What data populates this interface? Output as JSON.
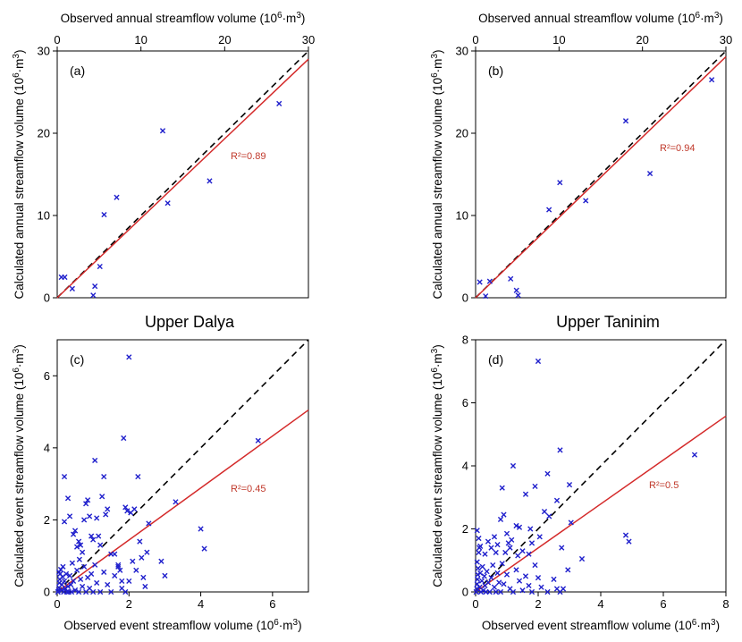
{
  "colors": {
    "marker": "#1f1fcc",
    "fit_line": "#d42a2a",
    "one_to_one": "#000000",
    "r2_text": "#c0392b"
  },
  "site_titles": [
    "Upper Dalya",
    "Upper Taninim"
  ],
  "chart_data": [
    {
      "type": "scatter",
      "panel_label": "(a)",
      "site": "Upper Dalya",
      "xlabel": "Observed annual streamflow volume (10^6·m^3)",
      "xlabel_position": "top",
      "ylabel": "Calculated annual streamflow volume (10^6·m^3)",
      "xlim": [
        0,
        30
      ],
      "ylim": [
        0,
        30
      ],
      "xticks": [
        0,
        10,
        20,
        30
      ],
      "yticks": [
        0,
        10,
        20,
        30
      ],
      "r2_text": "R²=0.89",
      "fit_line": {
        "x": [
          0,
          30
        ],
        "y": [
          0,
          29.0
        ]
      },
      "one_to_one": true,
      "points": [
        [
          0.5,
          2.5
        ],
        [
          0.9,
          2.5
        ],
        [
          1.8,
          1.1
        ],
        [
          4.3,
          0.3
        ],
        [
          4.5,
          1.4
        ],
        [
          5.1,
          3.8
        ],
        [
          5.6,
          10.1
        ],
        [
          7.1,
          12.2
        ],
        [
          12.6,
          20.3
        ],
        [
          13.2,
          11.5
        ],
        [
          18.2,
          14.2
        ],
        [
          26.5,
          23.6
        ]
      ]
    },
    {
      "type": "scatter",
      "panel_label": "(b)",
      "site": "Upper Taninim",
      "xlabel": "Observed annual streamflow volume (10^6·m^3)",
      "xlabel_position": "top",
      "ylabel": "Calculated annual streamflow volume (10^6·m^3)",
      "xlim": [
        0,
        30
      ],
      "ylim": [
        0,
        30
      ],
      "xticks": [
        0,
        10,
        20,
        30
      ],
      "yticks": [
        0,
        10,
        20,
        30
      ],
      "r2_text": "R²=0.94",
      "fit_line": {
        "x": [
          0,
          30
        ],
        "y": [
          0,
          29.3
        ]
      },
      "one_to_one": true,
      "points": [
        [
          0.5,
          1.9
        ],
        [
          1.2,
          0.2
        ],
        [
          1.7,
          2.0
        ],
        [
          4.2,
          2.3
        ],
        [
          4.9,
          0.9
        ],
        [
          5.1,
          0.3
        ],
        [
          8.8,
          10.7
        ],
        [
          10.1,
          14.0
        ],
        [
          13.2,
          11.8
        ],
        [
          18.0,
          21.5
        ],
        [
          20.9,
          15.1
        ],
        [
          28.3,
          26.5
        ]
      ]
    },
    {
      "type": "scatter",
      "panel_label": "(c)",
      "site": "Upper Dalya",
      "xlabel": "Observed event streamflow volume (10^6·m^3)",
      "xlabel_position": "bottom",
      "ylabel": "Calculated event streamflow volume (10^6·m^3)",
      "xlim": [
        0,
        7
      ],
      "ylim": [
        0,
        7
      ],
      "xticks": [
        0,
        2,
        4,
        6
      ],
      "yticks": [
        0,
        2,
        4,
        6
      ],
      "r2_text": "R²=0.45",
      "fit_line": {
        "x": [
          0,
          7
        ],
        "y": [
          0,
          5.05
        ]
      },
      "one_to_one": true,
      "points": [
        [
          0.02,
          0.0
        ],
        [
          0.04,
          0.05
        ],
        [
          0.05,
          0.12
        ],
        [
          0.06,
          0.25
        ],
        [
          0.07,
          0.35
        ],
        [
          0.08,
          0.5
        ],
        [
          0.05,
          0.55
        ],
        [
          0.1,
          0.62
        ],
        [
          0.12,
          0.05
        ],
        [
          0.13,
          0.2
        ],
        [
          0.15,
          0.42
        ],
        [
          0.16,
          0.7
        ],
        [
          0.18,
          0.0
        ],
        [
          0.2,
          0.3
        ],
        [
          0.22,
          0.1
        ],
        [
          0.25,
          0.5
        ],
        [
          0.27,
          0.0
        ],
        [
          0.3,
          0.15
        ],
        [
          0.32,
          0.0
        ],
        [
          0.35,
          0.45
        ],
        [
          0.38,
          0.2
        ],
        [
          0.4,
          0.0
        ],
        [
          0.42,
          0.8
        ],
        [
          0.45,
          0.3
        ],
        [
          0.5,
          0.05
        ],
        [
          0.55,
          0.6
        ],
        [
          0.6,
          0.0
        ],
        [
          0.62,
          0.9
        ],
        [
          0.65,
          0.35
        ],
        [
          0.7,
          0.15
        ],
        [
          0.75,
          0.7
        ],
        [
          0.8,
          0.0
        ],
        [
          0.85,
          0.4
        ],
        [
          0.9,
          0.1
        ],
        [
          0.95,
          0.5
        ],
        [
          1.0,
          0.0
        ],
        [
          1.05,
          0.75
        ],
        [
          1.1,
          0.25
        ],
        [
          1.2,
          0.0
        ],
        [
          1.3,
          0.55
        ],
        [
          1.4,
          0.2
        ],
        [
          1.5,
          0.0
        ],
        [
          1.6,
          0.45
        ],
        [
          1.7,
          0.7
        ],
        [
          1.8,
          0.1
        ],
        [
          1.9,
          0.0
        ],
        [
          2.0,
          0.3
        ],
        [
          2.2,
          0.6
        ],
        [
          2.4,
          0.4
        ],
        [
          2.45,
          0.15
        ],
        [
          0.2,
          3.2
        ],
        [
          0.3,
          2.6
        ],
        [
          0.35,
          2.1
        ],
        [
          0.2,
          1.95
        ],
        [
          0.45,
          1.6
        ],
        [
          0.5,
          1.7
        ],
        [
          0.55,
          1.25
        ],
        [
          0.6,
          1.4
        ],
        [
          0.65,
          1.3
        ],
        [
          0.7,
          1.1
        ],
        [
          0.75,
          2.0
        ],
        [
          0.8,
          2.45
        ],
        [
          0.85,
          2.55
        ],
        [
          0.9,
          2.1
        ],
        [
          0.95,
          1.55
        ],
        [
          1.0,
          1.45
        ],
        [
          1.05,
          3.65
        ],
        [
          1.1,
          2.05
        ],
        [
          1.15,
          1.55
        ],
        [
          1.2,
          1.3
        ],
        [
          1.25,
          2.65
        ],
        [
          1.3,
          3.2
        ],
        [
          1.35,
          2.15
        ],
        [
          1.4,
          2.3
        ],
        [
          1.5,
          1.05
        ],
        [
          1.6,
          1.05
        ],
        [
          1.7,
          0.75
        ],
        [
          1.75,
          0.6
        ],
        [
          1.8,
          0.3
        ],
        [
          1.85,
          4.27
        ],
        [
          1.9,
          2.35
        ],
        [
          1.95,
          2.25
        ],
        [
          2.0,
          6.52
        ],
        [
          2.05,
          2.2
        ],
        [
          2.1,
          0.85
        ],
        [
          2.15,
          2.3
        ],
        [
          2.25,
          3.2
        ],
        [
          2.3,
          1.4
        ],
        [
          2.35,
          0.95
        ],
        [
          2.5,
          1.1
        ],
        [
          2.55,
          1.9
        ],
        [
          2.9,
          0.85
        ],
        [
          3.0,
          0.45
        ],
        [
          3.3,
          2.5
        ],
        [
          4.0,
          1.75
        ],
        [
          4.1,
          1.2
        ],
        [
          5.6,
          4.2
        ]
      ]
    },
    {
      "type": "scatter",
      "panel_label": "(d)",
      "site": "Upper Taninim",
      "xlabel": "Observed event streamflow volume (10^6·m^3)",
      "xlabel_position": "bottom",
      "ylabel": "Calculated event streamflow volume (10^6·m^3)",
      "xlim": [
        0,
        8
      ],
      "ylim": [
        0,
        8
      ],
      "xticks": [
        0,
        2,
        4,
        6,
        8
      ],
      "yticks": [
        0,
        2,
        4,
        6,
        8
      ],
      "r2_text": "R²=0.5",
      "fit_line": {
        "x": [
          0,
          8
        ],
        "y": [
          0,
          5.58
        ]
      },
      "one_to_one": true,
      "points": [
        [
          0.02,
          0.0
        ],
        [
          0.04,
          0.1
        ],
        [
          0.05,
          0.25
        ],
        [
          0.06,
          0.4
        ],
        [
          0.07,
          0.55
        ],
        [
          0.08,
          0.75
        ],
        [
          0.05,
          0.95
        ],
        [
          0.1,
          1.25
        ],
        [
          0.12,
          1.4
        ],
        [
          0.13,
          0.15
        ],
        [
          0.15,
          0.6
        ],
        [
          0.17,
          0.0
        ],
        [
          0.2,
          0.35
        ],
        [
          0.22,
          0.8
        ],
        [
          0.25,
          0.05
        ],
        [
          0.28,
          0.5
        ],
        [
          0.3,
          0.2
        ],
        [
          0.33,
          0.0
        ],
        [
          0.36,
          0.65
        ],
        [
          0.4,
          0.3
        ],
        [
          0.45,
          0.0
        ],
        [
          0.5,
          0.45
        ],
        [
          0.55,
          0.85
        ],
        [
          0.6,
          0.15
        ],
        [
          0.65,
          0.0
        ],
        [
          0.7,
          0.6
        ],
        [
          0.75,
          0.3
        ],
        [
          0.8,
          0.0
        ],
        [
          0.85,
          0.9
        ],
        [
          0.9,
          0.25
        ],
        [
          1.0,
          0.55
        ],
        [
          1.1,
          0.1
        ],
        [
          1.2,
          0.0
        ],
        [
          1.3,
          0.7
        ],
        [
          1.4,
          0.35
        ],
        [
          1.5,
          0.05
        ],
        [
          1.6,
          0.5
        ],
        [
          1.7,
          0.2
        ],
        [
          1.8,
          0.0
        ],
        [
          1.9,
          0.85
        ],
        [
          2.0,
          0.45
        ],
        [
          2.1,
          0.15
        ],
        [
          2.3,
          0.0
        ],
        [
          2.5,
          0.4
        ],
        [
          2.6,
          0.1
        ],
        [
          2.7,
          0.0
        ],
        [
          0.05,
          1.95
        ],
        [
          0.1,
          1.7
        ],
        [
          0.15,
          1.45
        ],
        [
          0.3,
          1.2
        ],
        [
          0.4,
          1.6
        ],
        [
          0.5,
          1.4
        ],
        [
          0.6,
          1.75
        ],
        [
          0.65,
          1.25
        ],
        [
          0.7,
          1.5
        ],
        [
          0.8,
          2.3
        ],
        [
          0.85,
          3.3
        ],
        [
          0.9,
          2.45
        ],
        [
          0.95,
          1.25
        ],
        [
          1.0,
          1.85
        ],
        [
          1.05,
          1.55
        ],
        [
          1.1,
          1.4
        ],
        [
          1.15,
          1.65
        ],
        [
          1.2,
          4.0
        ],
        [
          1.3,
          2.1
        ],
        [
          1.35,
          1.15
        ],
        [
          1.4,
          2.05
        ],
        [
          1.5,
          1.3
        ],
        [
          1.6,
          3.1
        ],
        [
          1.7,
          1.2
        ],
        [
          1.75,
          2.0
        ],
        [
          1.8,
          1.55
        ],
        [
          1.9,
          3.35
        ],
        [
          2.0,
          7.32
        ],
        [
          2.05,
          1.75
        ],
        [
          2.2,
          2.55
        ],
        [
          2.3,
          3.75
        ],
        [
          2.35,
          2.4
        ],
        [
          2.6,
          2.9
        ],
        [
          2.7,
          4.5
        ],
        [
          2.75,
          1.4
        ],
        [
          2.8,
          0.1
        ],
        [
          2.95,
          0.7
        ],
        [
          3.0,
          3.4
        ],
        [
          3.05,
          2.2
        ],
        [
          3.4,
          1.05
        ],
        [
          4.8,
          1.8
        ],
        [
          4.9,
          1.6
        ],
        [
          7.0,
          4.35
        ]
      ]
    }
  ]
}
